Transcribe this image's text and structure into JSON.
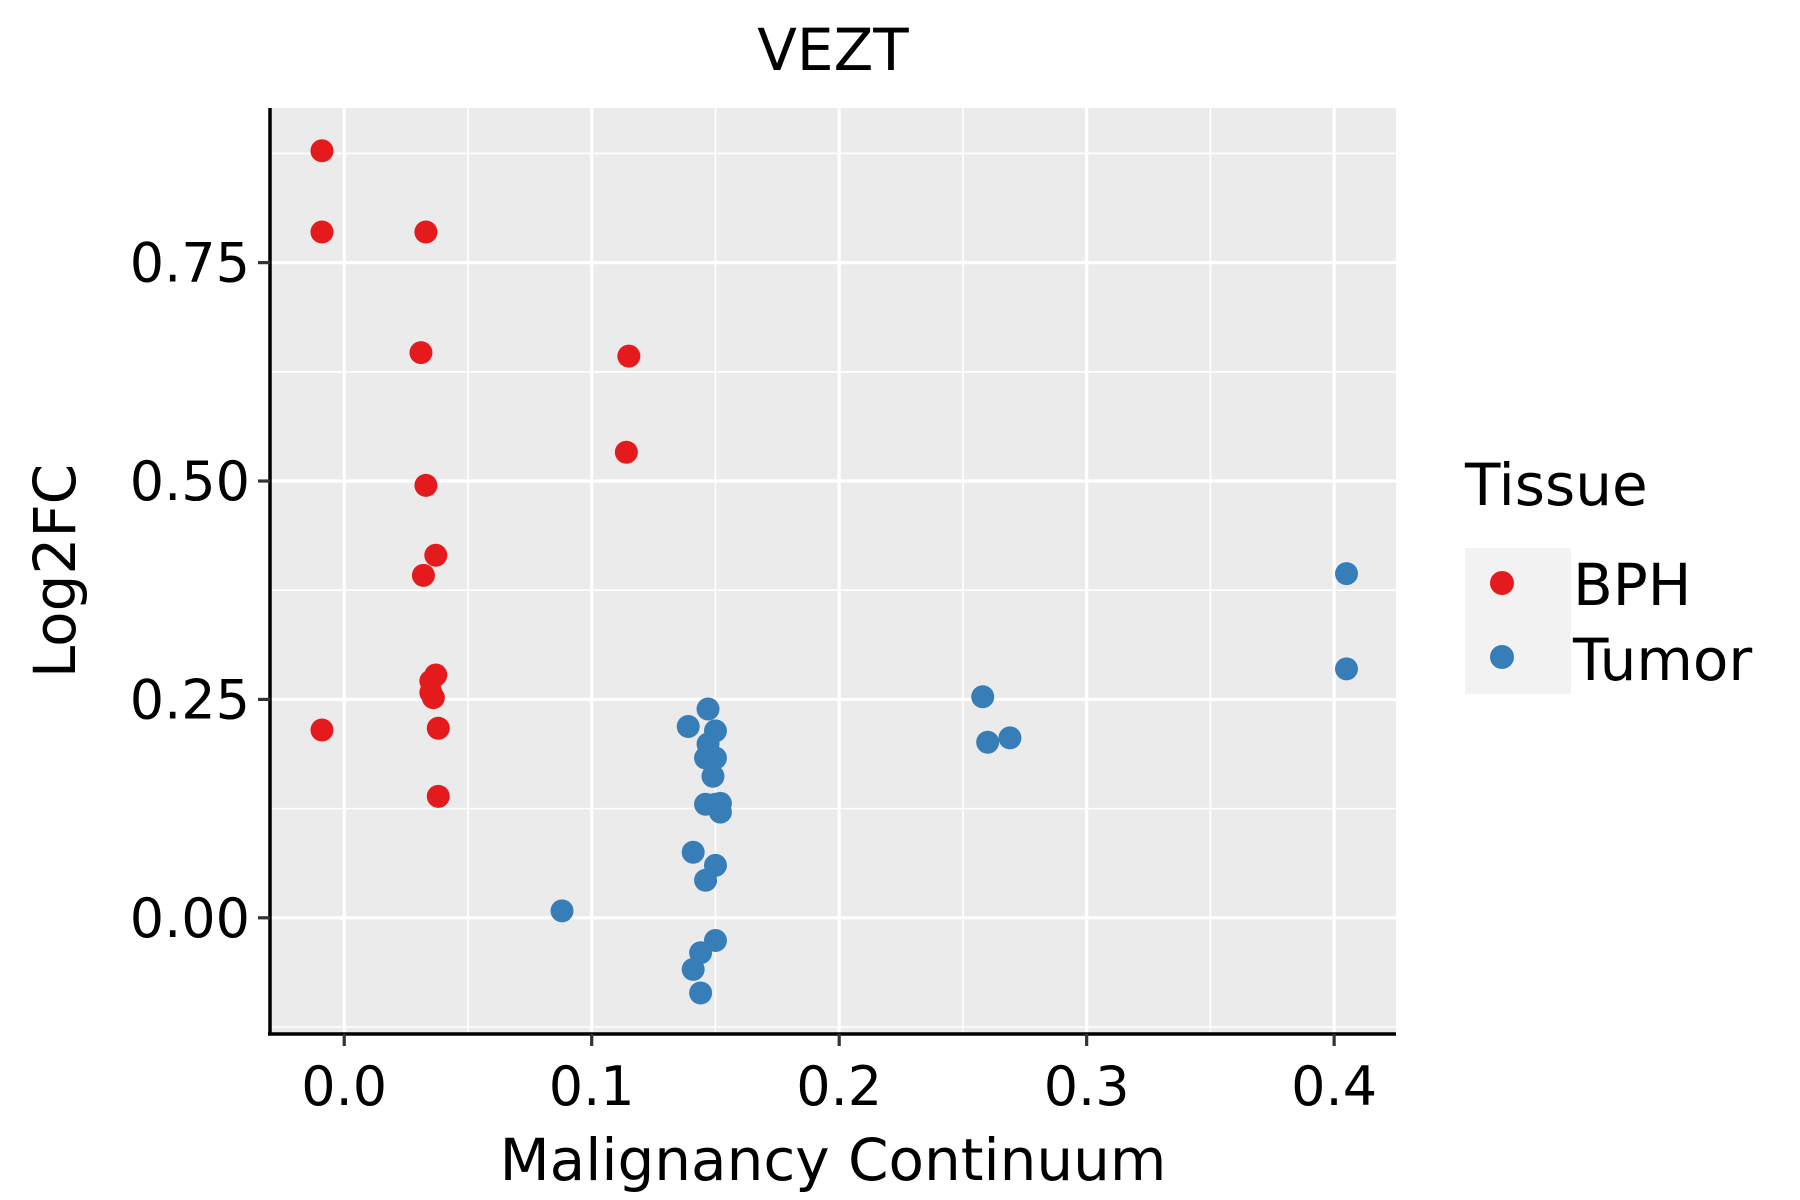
{
  "chart_data": {
    "type": "scatter",
    "title": "VEZT",
    "xlabel": "Malignancy Continuum",
    "ylabel": "Log2FC",
    "xlim": [
      -0.03,
      0.425
    ],
    "ylim": [
      -0.133,
      0.927
    ],
    "x_ticks": [
      0.0,
      0.1,
      0.2,
      0.3,
      0.4
    ],
    "x_tick_labels": [
      "0.0",
      "0.1",
      "0.2",
      "0.3",
      "0.4"
    ],
    "y_ticks": [
      0.0,
      0.25,
      0.5,
      0.75
    ],
    "y_tick_labels": [
      "0.00",
      "0.25",
      "0.50",
      "0.75"
    ],
    "grid": true,
    "legend": {
      "title": "Tissue",
      "position": "right",
      "entries": [
        "BPH",
        "Tumor"
      ]
    },
    "series": [
      {
        "name": "BPH",
        "color": "#e41a1c",
        "points": [
          [
            -0.009,
            0.878
          ],
          [
            -0.009,
            0.785
          ],
          [
            0.033,
            0.785
          ],
          [
            0.031,
            0.647
          ],
          [
            0.033,
            0.495
          ],
          [
            0.037,
            0.415
          ],
          [
            0.032,
            0.392
          ],
          [
            0.037,
            0.278
          ],
          [
            0.035,
            0.271
          ],
          [
            0.035,
            0.258
          ],
          [
            0.036,
            0.252
          ],
          [
            0.038,
            0.217
          ],
          [
            -0.009,
            0.215
          ],
          [
            0.038,
            0.139
          ],
          [
            0.115,
            0.643
          ],
          [
            0.114,
            0.533
          ]
        ]
      },
      {
        "name": "Tumor",
        "color": "#377eb8",
        "points": [
          [
            0.088,
            0.008
          ],
          [
            0.139,
            0.219
          ],
          [
            0.147,
            0.239
          ],
          [
            0.15,
            0.214
          ],
          [
            0.147,
            0.199
          ],
          [
            0.146,
            0.183
          ],
          [
            0.15,
            0.183
          ],
          [
            0.149,
            0.162
          ],
          [
            0.146,
            0.13
          ],
          [
            0.15,
            0.13
          ],
          [
            0.152,
            0.131
          ],
          [
            0.152,
            0.121
          ],
          [
            0.141,
            0.075
          ],
          [
            0.15,
            0.06
          ],
          [
            0.146,
            0.043
          ],
          [
            0.15,
            -0.026
          ],
          [
            0.144,
            -0.04
          ],
          [
            0.141,
            -0.059
          ],
          [
            0.144,
            -0.086
          ],
          [
            0.258,
            0.253
          ],
          [
            0.26,
            0.201
          ],
          [
            0.269,
            0.206
          ],
          [
            0.405,
            0.394
          ],
          [
            0.405,
            0.285
          ]
        ]
      }
    ]
  }
}
